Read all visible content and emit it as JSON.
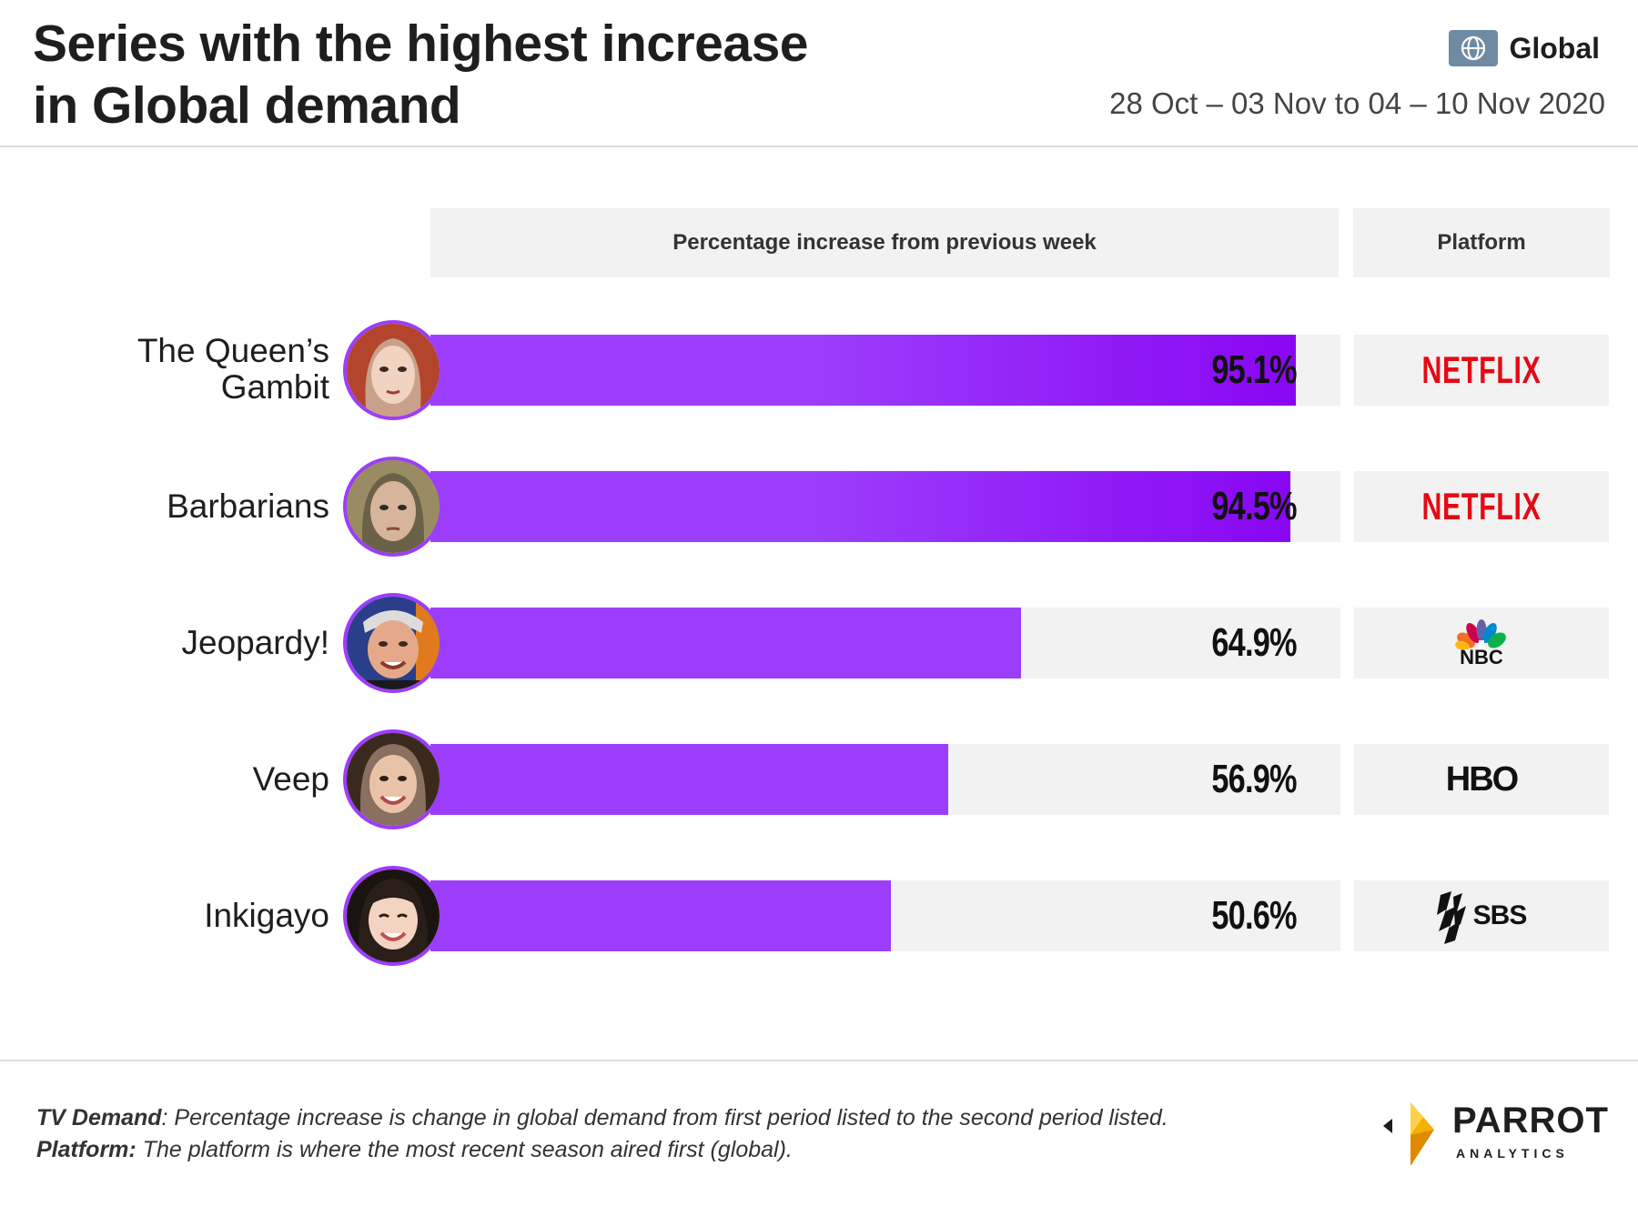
{
  "header": {
    "title_line1": "Series with the highest increase",
    "title_line2": "in Global demand",
    "region": "Global",
    "date_range": "28 Oct – 03 Nov to 04 – 10 Nov 2020"
  },
  "columns": {
    "bar_header": "Percentage increase from previous week",
    "platform_header": "Platform"
  },
  "colors": {
    "bar": "#9c3dfb",
    "bar_dark": "#8906f3",
    "track": "#f2f2f2",
    "netflix": "#e50914"
  },
  "chart_data": {
    "type": "bar",
    "orientation": "horizontal",
    "title": "Series with the highest increase in Global demand",
    "xlabel": "Percentage increase from previous week",
    "xlim": [
      0,
      100
    ],
    "categories": [
      "The Queen’s Gambit",
      "Barbarians",
      "Jeopardy!",
      "Veep",
      "Inkigayo"
    ],
    "values": [
      95.1,
      94.5,
      64.9,
      56.9,
      50.6
    ],
    "value_labels": [
      "95.1%",
      "94.5%",
      "64.9%",
      "56.9%",
      "50.6%"
    ],
    "platforms": [
      "Netflix",
      "Netflix",
      "NBC",
      "HBO",
      "SBS"
    ]
  },
  "rows": [
    {
      "name_lines": [
        "The Queen’s",
        "Gambit"
      ],
      "platform_label": "NETFLIX",
      "avatar": "queens-gambit-avatar"
    },
    {
      "name_lines": [
        "Barbarians"
      ],
      "platform_label": "NETFLIX",
      "avatar": "barbarians-avatar"
    },
    {
      "name_lines": [
        "Jeopardy!"
      ],
      "platform_label": "NBC",
      "avatar": "jeopardy-avatar"
    },
    {
      "name_lines": [
        "Veep"
      ],
      "platform_label": "HBO",
      "avatar": "veep-avatar"
    },
    {
      "name_lines": [
        "Inkigayo"
      ],
      "platform_label": "SBS",
      "avatar": "inkigayo-avatar"
    }
  ],
  "footer": {
    "note1_label": "TV Demand",
    "note1_text": ": Percentage increase is change in global demand from first period listed to the second period listed.",
    "note2_label": "Platform:",
    "note2_text": " The platform is where the most recent season aired first (global).",
    "brand_name": "PARROT",
    "brand_sub": "ANALYTICS"
  }
}
